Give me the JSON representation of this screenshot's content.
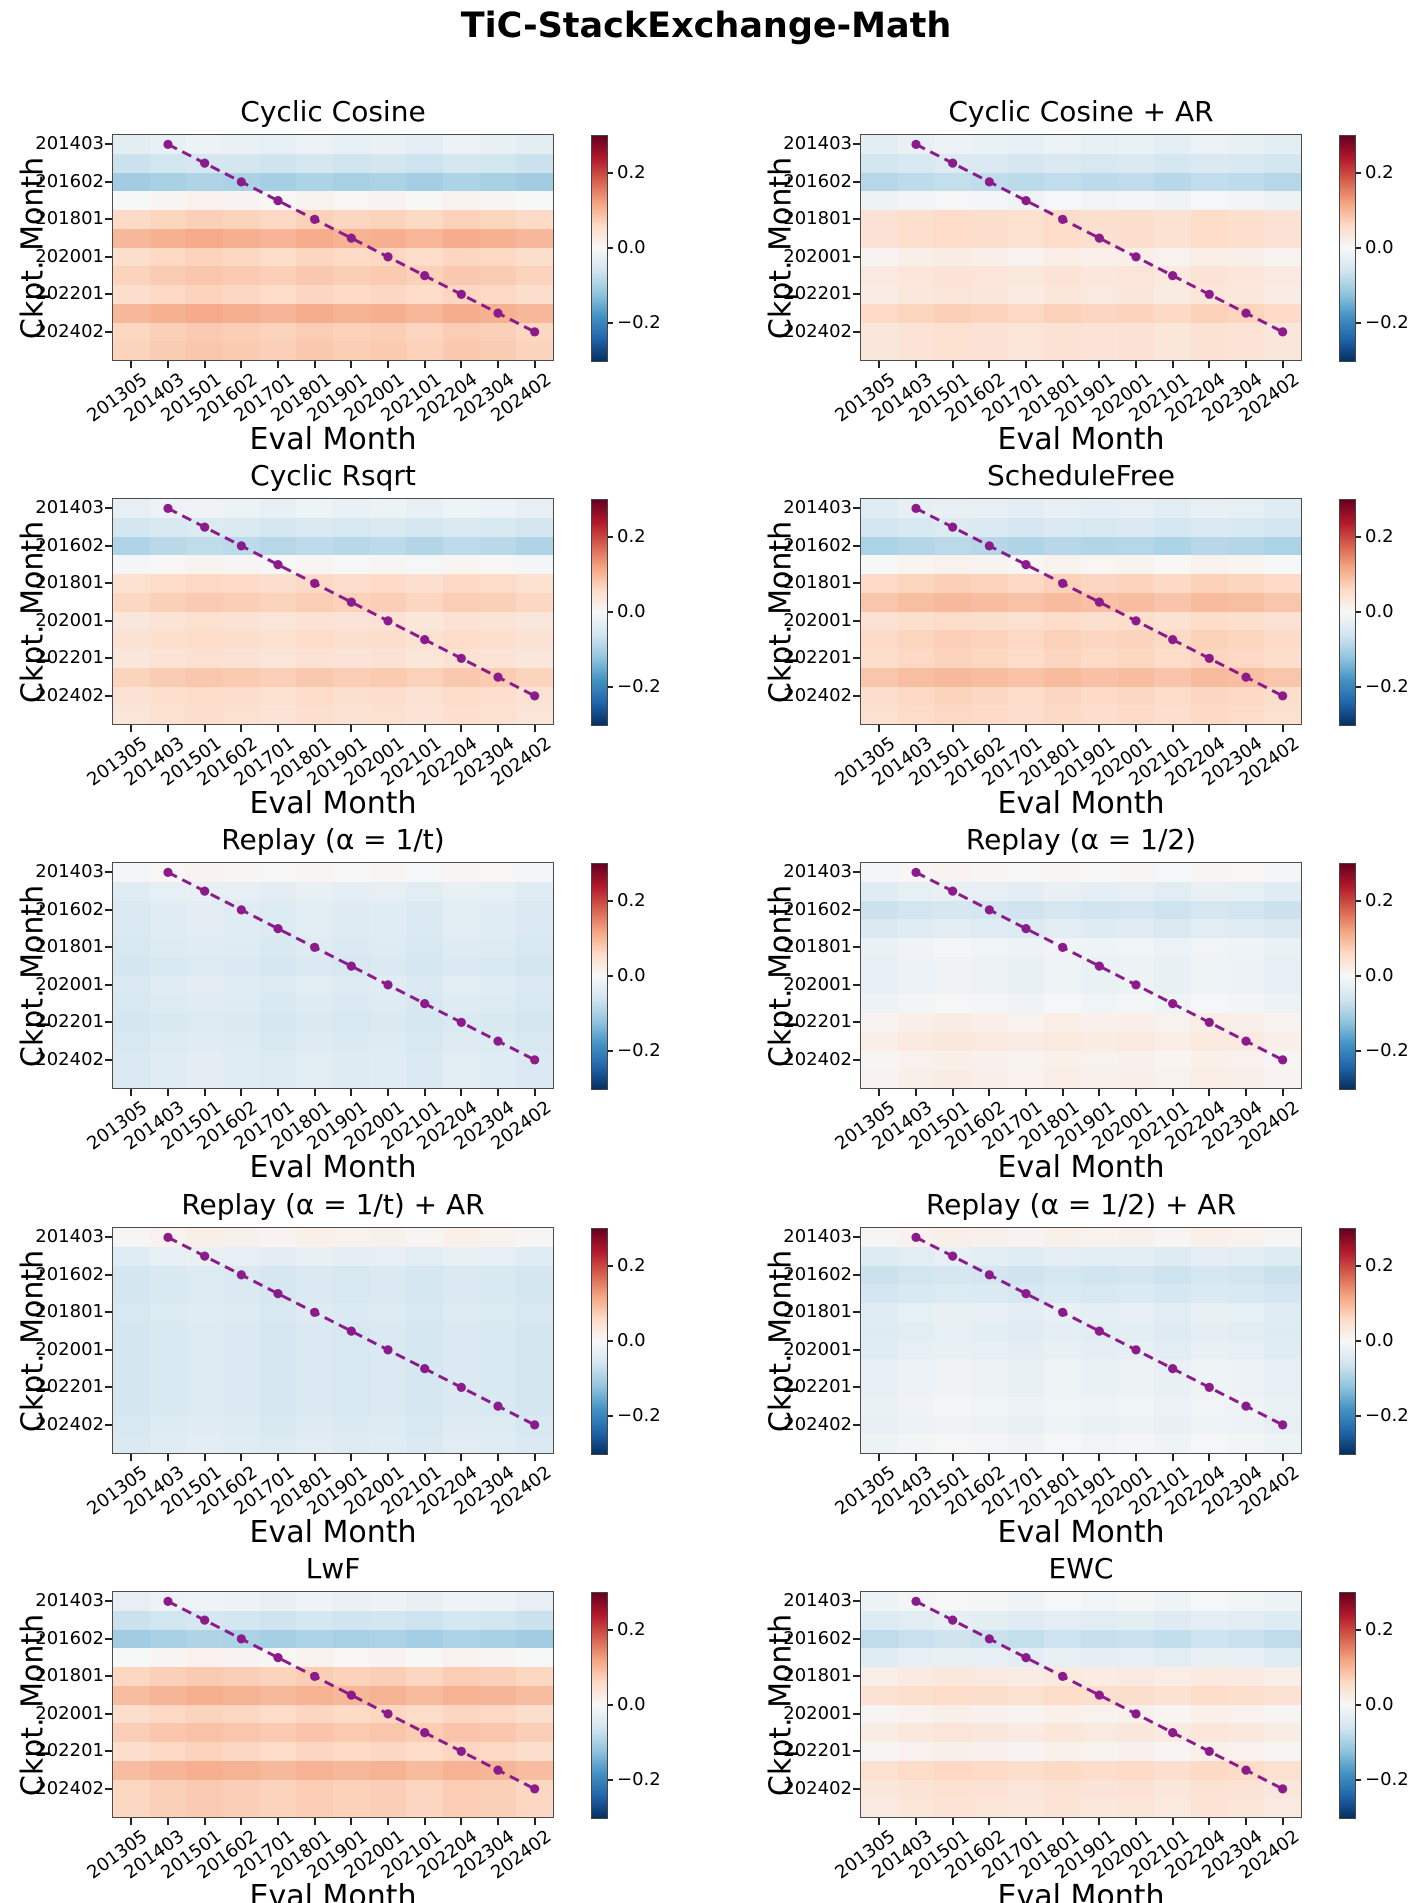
{
  "figure": {
    "title": "TiC-StackExchange-Math"
  },
  "axes": {
    "x_label": "Eval Month",
    "y_label": "Ckpt. Month"
  },
  "colorbar": {
    "tick_labels": [
      "0.2",
      "0.0",
      "−0.2"
    ],
    "tick_values": [
      0.2,
      0.0,
      -0.2
    ],
    "vmin": -0.3,
    "vmax": 0.3,
    "colormap": "RdBu_r",
    "colormap_stops": [
      "#053061",
      "#2166ac",
      "#4393c3",
      "#92c5de",
      "#d1e5f0",
      "#f7f7f7",
      "#fddbc7",
      "#f4a582",
      "#d6604d",
      "#b2182b",
      "#67001f"
    ]
  },
  "chart_data": {
    "type": "heatmap",
    "grid": {
      "rows": 12,
      "cols": 12
    },
    "x_tick_labels": [
      "201305",
      "201403",
      "201501",
      "201602",
      "201701",
      "201801",
      "201901",
      "202001",
      "202101",
      "202204",
      "202304",
      "202402"
    ],
    "y_tick_labels": [
      "201403",
      "201602",
      "201801",
      "202001",
      "202201",
      "202402"
    ],
    "y_tick_rows": [
      0,
      2,
      4,
      6,
      8,
      10
    ],
    "value_range": [
      -0.3,
      0.3
    ],
    "cell_rule": "value(r,c) = subplot.row_values[r] + col_offsets[c]",
    "col_offsets": [
      -0.006,
      0.002,
      0.008,
      0.004,
      -0.002,
      0.006,
      0.0,
      0.004,
      -0.004,
      0.006,
      0.002,
      -0.006
    ],
    "diagonal_line": {
      "color": "#8b1a8b",
      "style": "dashed-with-dots",
      "points_row_col": [
        [
          0,
          1
        ],
        [
          1,
          2
        ],
        [
          2,
          3
        ],
        [
          3,
          4
        ],
        [
          4,
          5
        ],
        [
          5,
          6
        ],
        [
          6,
          7
        ],
        [
          7,
          8
        ],
        [
          8,
          9
        ],
        [
          9,
          10
        ],
        [
          10,
          11
        ]
      ]
    },
    "subplots": [
      {
        "title": "Cyclic Cosine",
        "row_values": [
          -0.025,
          -0.06,
          -0.1,
          0.005,
          0.065,
          0.105,
          0.06,
          0.075,
          0.06,
          0.105,
          0.07,
          0.075
        ]
      },
      {
        "title": "Cyclic Cosine + AR",
        "row_values": [
          -0.025,
          -0.05,
          -0.08,
          -0.01,
          0.05,
          0.05,
          0.015,
          0.035,
          0.03,
          0.065,
          0.04,
          0.04
        ]
      },
      {
        "title": "Cyclic Rsqrt",
        "row_values": [
          -0.02,
          -0.05,
          -0.085,
          0.0,
          0.055,
          0.07,
          0.04,
          0.05,
          0.04,
          0.075,
          0.05,
          0.045
        ]
      },
      {
        "title": "ScheduleFree",
        "row_values": [
          -0.03,
          -0.05,
          -0.09,
          0.005,
          0.065,
          0.09,
          0.05,
          0.065,
          0.06,
          0.09,
          0.06,
          0.055
        ]
      },
      {
        "title": "Replay (α = 1/t)",
        "row_values": [
          0.0,
          -0.03,
          -0.04,
          -0.04,
          -0.045,
          -0.05,
          -0.04,
          -0.045,
          -0.05,
          -0.045,
          -0.04,
          -0.04
        ]
      },
      {
        "title": "Replay (α = 1/2)",
        "row_values": [
          0.0,
          -0.03,
          -0.06,
          -0.04,
          -0.015,
          -0.02,
          -0.02,
          -0.01,
          0.015,
          0.025,
          0.01,
          0.015
        ]
      },
      {
        "title": "Replay (α = 1/t) + AR",
        "row_values": [
          0.01,
          -0.03,
          -0.05,
          -0.05,
          -0.045,
          -0.05,
          -0.05,
          -0.05,
          -0.05,
          -0.05,
          -0.045,
          -0.04
        ]
      },
      {
        "title": "Replay (α = 1/2) + AR",
        "row_values": [
          0.01,
          -0.035,
          -0.06,
          -0.05,
          -0.03,
          -0.035,
          -0.03,
          -0.02,
          -0.02,
          -0.015,
          -0.02,
          -0.01
        ]
      },
      {
        "title": "LwF",
        "row_values": [
          -0.02,
          -0.06,
          -0.1,
          0.005,
          0.07,
          0.1,
          0.06,
          0.08,
          0.06,
          0.1,
          0.07,
          0.07
        ]
      },
      {
        "title": "EWC",
        "row_values": [
          -0.01,
          -0.035,
          -0.07,
          -0.03,
          0.025,
          0.05,
          0.01,
          0.03,
          0.01,
          0.055,
          0.04,
          0.035
        ]
      }
    ]
  }
}
